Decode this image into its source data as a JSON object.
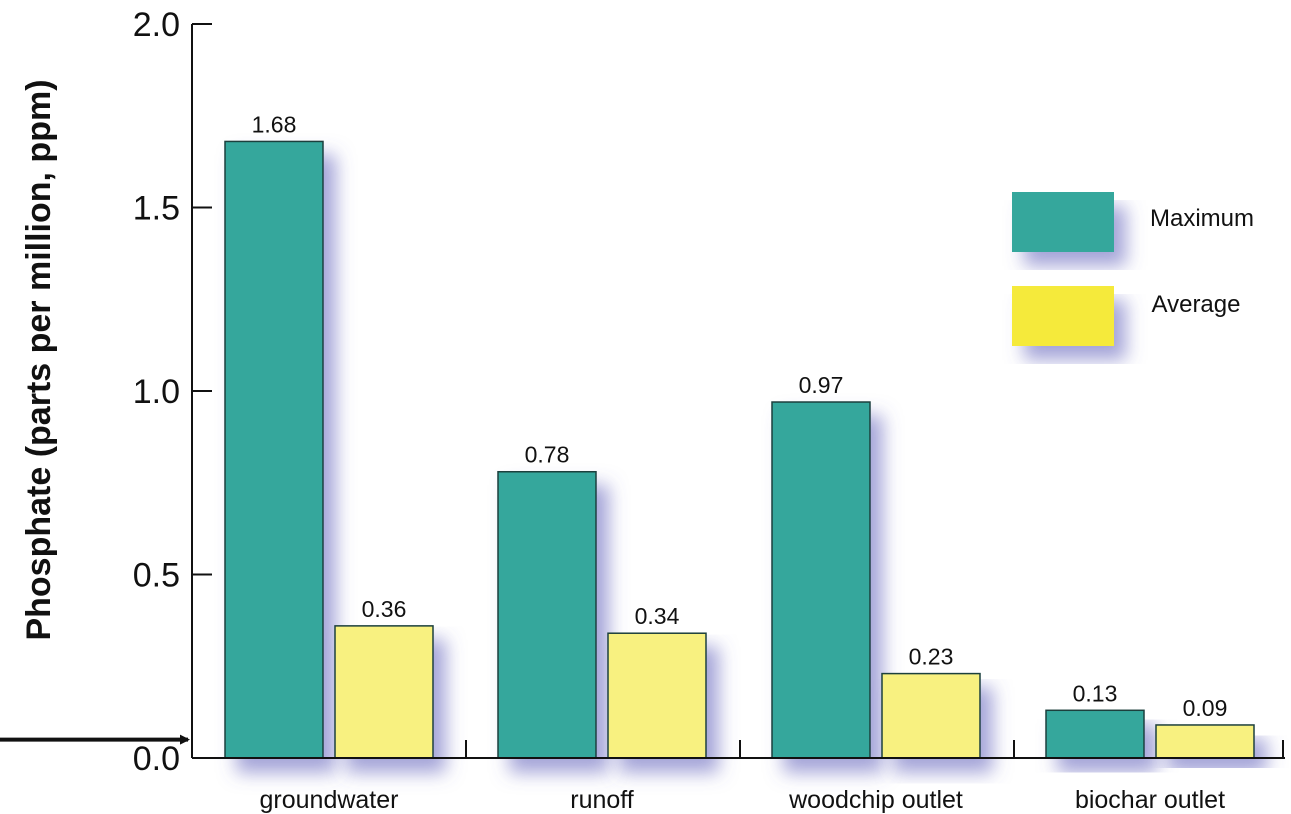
{
  "chart_data": {
    "type": "bar",
    "title": "",
    "xlabel": "",
    "ylabel": "Phosphate (parts per million, ppm)",
    "ylim": [
      0,
      2.0
    ],
    "yticks": [
      "0.0",
      "0.5",
      "1.0",
      "1.5",
      "2.0"
    ],
    "categories": [
      "groundwater",
      "runoff",
      "woodchip outlet",
      "biochar outlet"
    ],
    "series": [
      {
        "name": "Maximum",
        "color": "#35a79c",
        "values": [
          1.68,
          0.78,
          0.97,
          0.13
        ],
        "labels": [
          "1.68",
          "0.78",
          "0.97",
          "0.13"
        ]
      },
      {
        "name": "Average",
        "color": "#f8f180",
        "values": [
          0.36,
          0.34,
          0.23,
          0.09
        ],
        "labels": [
          "0.36",
          "0.34",
          "0.23",
          "0.09"
        ]
      }
    ],
    "legend": {
      "position": "top-right",
      "items": [
        {
          "label": "Maximum",
          "color": "#35a79c"
        },
        {
          "label": "Average",
          "color": "#f5ea3a"
        }
      ]
    },
    "grid": false,
    "annotations": [
      {
        "type": "arrow",
        "target": "y-axis",
        "at": 0.05
      }
    ]
  }
}
